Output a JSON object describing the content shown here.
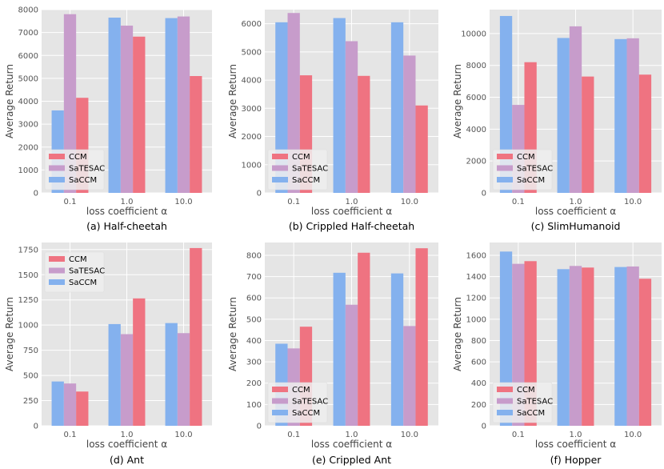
{
  "colors": {
    "CCM": "#ef7381",
    "SaTESAC": "#c79ccb",
    "SaCCM": "#84b1ee",
    "plot_bg": "#e5e5e5",
    "grid": "#ffffff"
  },
  "chart_data": [
    {
      "type": "bar",
      "caption": "(a) Half-cheetah",
      "categories": [
        "0.1",
        "1.0",
        "10.0"
      ],
      "xlabel": "loss coefficient α",
      "ylabel": "Average Return",
      "ylim": [
        0,
        8000
      ],
      "yticks": [
        0,
        1000,
        2000,
        3000,
        4000,
        5000,
        6000,
        7000,
        8000
      ],
      "yticklabels": [
        "0",
        "1000",
        "2000",
        "3000",
        "4000",
        "5000",
        "6000",
        "7000",
        "8000"
      ],
      "legend": "bottom-left",
      "legend_order": [
        "CCM",
        "SaTESAC",
        "SaCCM"
      ],
      "series": [
        {
          "name": "SaCCM",
          "values": [
            3600,
            7650,
            7630
          ]
        },
        {
          "name": "SaTESAC",
          "values": [
            7800,
            7300,
            7700
          ]
        },
        {
          "name": "CCM",
          "values": [
            4150,
            6820,
            5100
          ]
        }
      ]
    },
    {
      "type": "bar",
      "caption": "(b) Crippled Half-cheetah",
      "categories": [
        "0.1",
        "1.0",
        "10.0"
      ],
      "xlabel": "loss coefficient α",
      "ylabel": "Average Return",
      "ylim": [
        0,
        6500
      ],
      "yticks": [
        0,
        1000,
        2000,
        3000,
        4000,
        5000,
        6000
      ],
      "yticklabels": [
        "0",
        "1000",
        "2000",
        "3000",
        "4000",
        "5000",
        "6000"
      ],
      "legend": "bottom-left",
      "legend_order": [
        "CCM",
        "SaTESAC",
        "SaCCM"
      ],
      "series": [
        {
          "name": "SaCCM",
          "values": [
            6050,
            6200,
            6050
          ]
        },
        {
          "name": "SaTESAC",
          "values": [
            6380,
            5380,
            4870
          ]
        },
        {
          "name": "CCM",
          "values": [
            4170,
            4150,
            3100
          ]
        }
      ]
    },
    {
      "type": "bar",
      "caption": "(c) SlimHumanoid",
      "categories": [
        "0.1",
        "1.0",
        "10.0"
      ],
      "xlabel": "loss coefficient α",
      "ylabel": "Average Return",
      "ylim": [
        0,
        11500
      ],
      "yticks": [
        0,
        2000,
        4000,
        6000,
        8000,
        10000
      ],
      "yticklabels": [
        "0",
        "2000",
        "4000",
        "6000",
        "8000",
        "10000"
      ],
      "legend": "bottom-left",
      "legend_order": [
        "CCM",
        "SaTESAC",
        "SaCCM"
      ],
      "series": [
        {
          "name": "SaCCM",
          "values": [
            11100,
            9720,
            9650
          ]
        },
        {
          "name": "SaTESAC",
          "values": [
            5520,
            10450,
            9700
          ]
        },
        {
          "name": "CCM",
          "values": [
            8200,
            7300,
            7420
          ]
        }
      ]
    },
    {
      "type": "bar",
      "caption": "(d) Ant",
      "categories": [
        "0.1",
        "1.0",
        "10.0"
      ],
      "xlabel": "loss coefficient α",
      "ylabel": "Average Return",
      "ylim": [
        0,
        1820
      ],
      "yticks": [
        0,
        250,
        500,
        750,
        1000,
        1250,
        1500,
        1750
      ],
      "yticklabels": [
        "0",
        "250",
        "500",
        "750",
        "1000",
        "1250",
        "1500",
        "1750"
      ],
      "legend": "top-left",
      "legend_order": [
        "CCM",
        "SaTESAC",
        "SaCCM"
      ],
      "series": [
        {
          "name": "SaCCM",
          "values": [
            440,
            1010,
            1020
          ]
        },
        {
          "name": "SaTESAC",
          "values": [
            420,
            910,
            920
          ]
        },
        {
          "name": "CCM",
          "values": [
            340,
            1265,
            1765
          ]
        }
      ]
    },
    {
      "type": "bar",
      "caption": "(e) Crippled Ant",
      "categories": [
        "0.1",
        "1.0",
        "10.0"
      ],
      "xlabel": "loss coefficient α",
      "ylabel": "Average Return",
      "ylim": [
        0,
        860
      ],
      "yticks": [
        0,
        100,
        200,
        300,
        400,
        500,
        600,
        700,
        800
      ],
      "yticklabels": [
        "0",
        "100",
        "200",
        "300",
        "400",
        "500",
        "600",
        "700",
        "800"
      ],
      "legend": "bottom-left",
      "legend_order": [
        "CCM",
        "SaTESAC",
        "SaCCM"
      ],
      "series": [
        {
          "name": "SaCCM",
          "values": [
            385,
            718,
            715
          ]
        },
        {
          "name": "SaTESAC",
          "values": [
            363,
            568,
            468
          ]
        },
        {
          "name": "CCM",
          "values": [
            465,
            812,
            833
          ]
        }
      ]
    },
    {
      "type": "bar",
      "caption": "(f) Hopper",
      "categories": [
        "0.1",
        "1.0",
        "10.0"
      ],
      "xlabel": "loss coefficient α",
      "ylabel": "Average Return",
      "ylim": [
        0,
        1720
      ],
      "yticks": [
        0,
        200,
        400,
        600,
        800,
        1000,
        1200,
        1400,
        1600
      ],
      "yticklabels": [
        "0",
        "200",
        "400",
        "600",
        "800",
        "1000",
        "1200",
        "1400",
        "1600"
      ],
      "legend": "bottom-left",
      "legend_order": [
        "CCM",
        "SaTESAC",
        "SaCCM"
      ],
      "series": [
        {
          "name": "SaCCM",
          "values": [
            1635,
            1470,
            1490
          ]
        },
        {
          "name": "SaTESAC",
          "values": [
            1520,
            1500,
            1495
          ]
        },
        {
          "name": "CCM",
          "values": [
            1545,
            1485,
            1380
          ]
        }
      ]
    }
  ]
}
